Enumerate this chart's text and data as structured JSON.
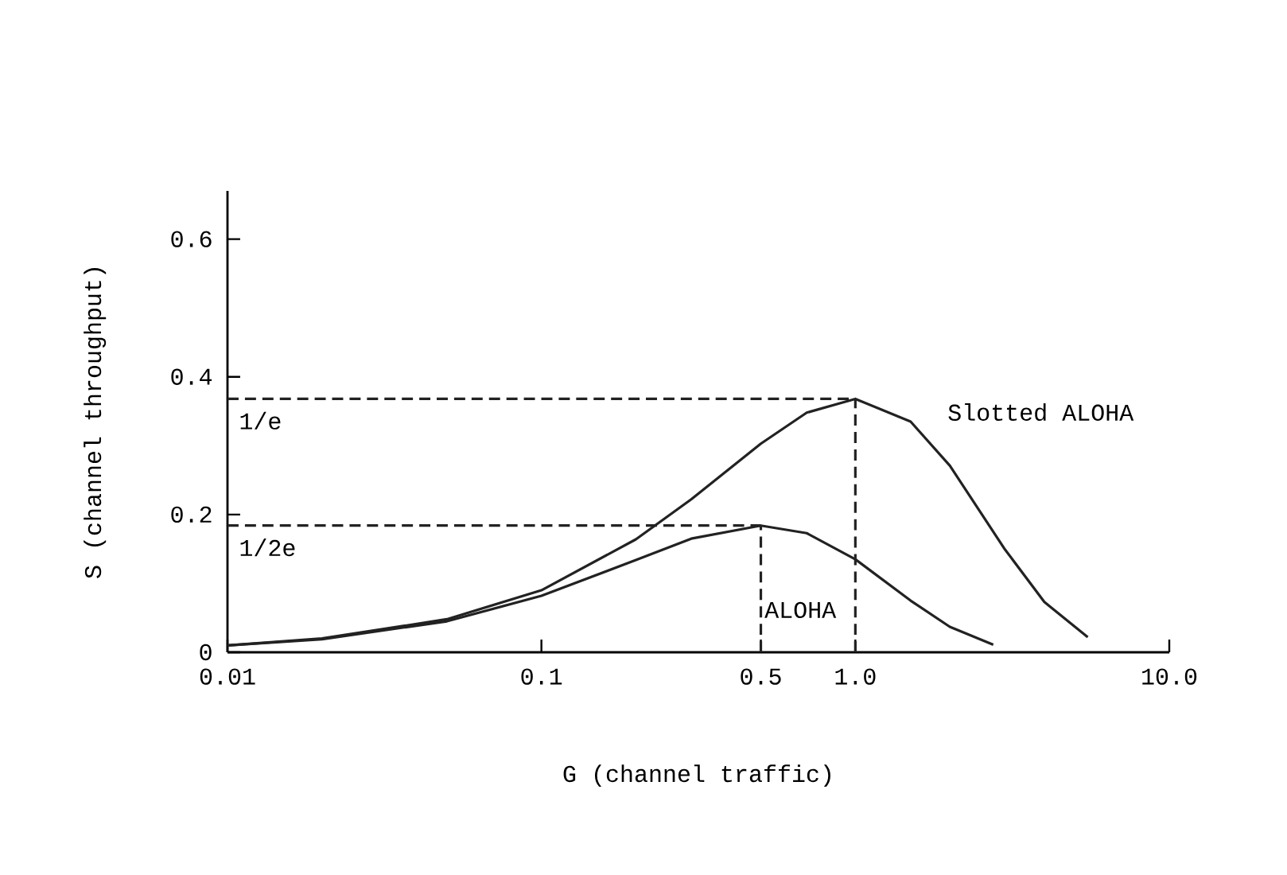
{
  "chart_data": {
    "type": "line",
    "xlabel": "G  (channel traffic)",
    "ylabel": "S  (channel throughput)",
    "log": "x",
    "xlim": [
      0.01,
      10
    ],
    "ylim": [
      0,
      0.67
    ],
    "xticks": [
      {
        "value": 0.01,
        "label": "0.01"
      },
      {
        "value": 0.1,
        "label": "0.1"
      },
      {
        "value": 0.5,
        "label": "0.5"
      },
      {
        "value": 1,
        "label": "1.0"
      },
      {
        "value": 10,
        "label": "10.0"
      }
    ],
    "yticks": [
      {
        "value": 0,
        "label": "0"
      },
      {
        "value": 0.2,
        "label": "0.2"
      },
      {
        "value": 0.4,
        "label": "0.4"
      },
      {
        "value": 0.6,
        "label": "0.6"
      }
    ],
    "grid": false,
    "legend": false,
    "marker": "none",
    "series": [
      {
        "name": "Slotted ALOHA",
        "color": "#222222",
        "line_style": "solid",
        "x": [
          0.01,
          0.02,
          0.05,
          0.1,
          0.2,
          0.3,
          0.5,
          0.7,
          1,
          1.5,
          2,
          3,
          4,
          5.5
        ],
        "values": [
          0.01,
          0.02,
          0.048,
          0.09,
          0.164,
          0.222,
          0.303,
          0.348,
          0.368,
          0.335,
          0.271,
          0.149,
          0.073,
          0.022
        ]
      },
      {
        "name": "ALOHA",
        "color": "#222222",
        "line_style": "solid",
        "x": [
          0.01,
          0.02,
          0.05,
          0.1,
          0.2,
          0.3,
          0.5,
          0.7,
          1,
          1.5,
          2,
          2.75
        ],
        "values": [
          0.01,
          0.019,
          0.045,
          0.082,
          0.134,
          0.165,
          0.184,
          0.173,
          0.135,
          0.075,
          0.037,
          0.011
        ]
      },
      {
        "color": "#222222",
        "line_style": "dashed",
        "x": [
          0.01,
          1
        ],
        "values": [
          0.368,
          0.368
        ]
      },
      {
        "color": "#222222",
        "line_style": "dashed",
        "x": [
          0.01,
          0.5
        ],
        "values": [
          0.184,
          0.184
        ]
      },
      {
        "color": "#222222",
        "line_style": "dashed",
        "x": [
          0.5,
          0.5
        ],
        "values": [
          0,
          0.184
        ]
      },
      {
        "color": "#222222",
        "line_style": "dashed",
        "x": [
          1,
          1
        ],
        "values": [
          0,
          0.368
        ]
      }
    ],
    "annotations": [
      {
        "text": "1/e",
        "x": 0.01,
        "y": 0.368
      },
      {
        "text": "1/2e",
        "x": 0.01,
        "y": 0.184
      }
    ]
  }
}
